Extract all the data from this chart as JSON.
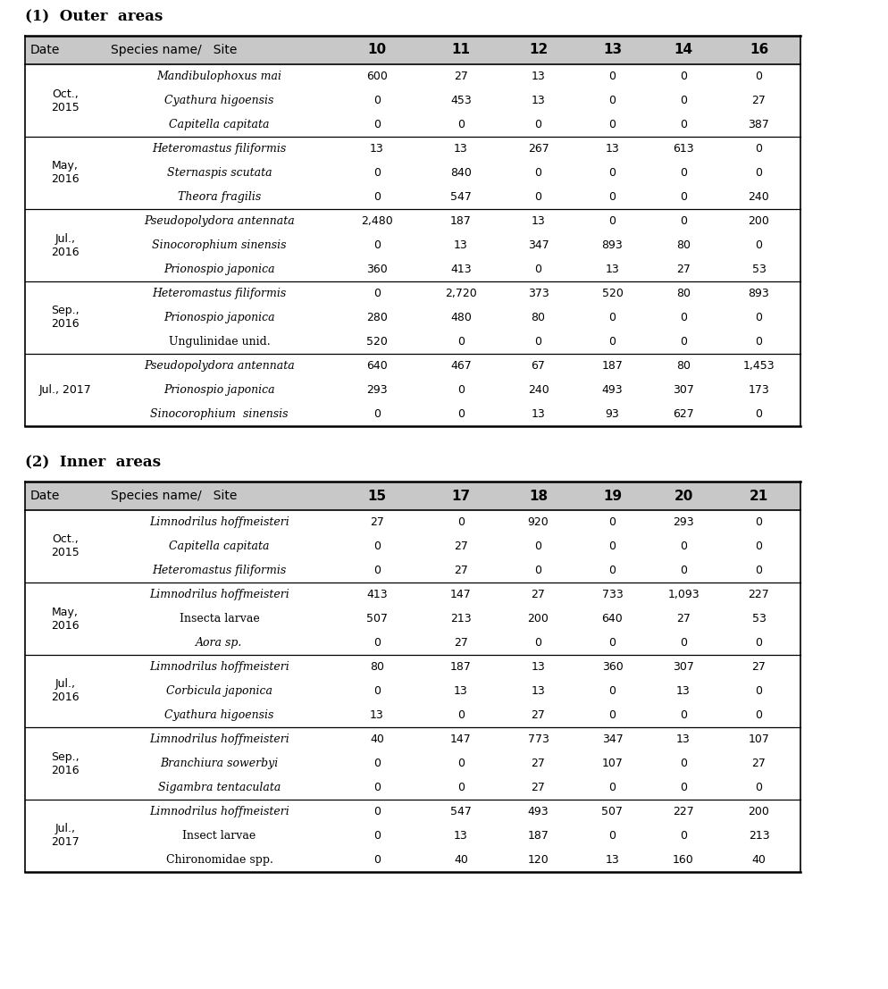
{
  "section1_title": "(1)  Outer  areas",
  "section2_title": "(2)  Inner  areas",
  "table1_header_cols": [
    "Date",
    "Species name/   Site",
    "10",
    "11",
    "12",
    "13",
    "14",
    "16"
  ],
  "table2_header_cols": [
    "Date",
    "Species name/   Site",
    "15",
    "17",
    "18",
    "19",
    "20",
    "21"
  ],
  "table1_rows": [
    {
      "date": "Oct.,\n2015",
      "species": [
        "Mandibulophoxus mai",
        "Cyathura higoensis",
        "Capitella capitata"
      ],
      "italic": [
        true,
        true,
        true
      ],
      "values": [
        [
          "600",
          "27",
          "13",
          "0",
          "0",
          "0"
        ],
        [
          "0",
          "453",
          "13",
          "0",
          "0",
          "27"
        ],
        [
          "0",
          "0",
          "0",
          "0",
          "0",
          "387"
        ]
      ]
    },
    {
      "date": "May,\n2016",
      "species": [
        "Heteromastus filiformis",
        "Sternaspis scutata",
        "Theora fragilis"
      ],
      "italic": [
        true,
        true,
        true
      ],
      "values": [
        [
          "13",
          "13",
          "267",
          "13",
          "613",
          "0"
        ],
        [
          "0",
          "840",
          "0",
          "0",
          "0",
          "0"
        ],
        [
          "0",
          "547",
          "0",
          "0",
          "0",
          "240"
        ]
      ]
    },
    {
      "date": "Jul.,\n2016",
      "species": [
        "Pseudopolydora antennata",
        "Sinocorophium sinensis",
        "Prionospio japonica"
      ],
      "italic": [
        true,
        true,
        true
      ],
      "values": [
        [
          "2,480",
          "187",
          "13",
          "0",
          "0",
          "200"
        ],
        [
          "0",
          "13",
          "347",
          "893",
          "80",
          "0"
        ],
        [
          "360",
          "413",
          "0",
          "13",
          "27",
          "53"
        ]
      ]
    },
    {
      "date": "Sep.,\n2016",
      "species": [
        "Heteromastus filiformis",
        "Prionospio japonica",
        "Ungulinidae unid."
      ],
      "italic": [
        true,
        true,
        false
      ],
      "values": [
        [
          "0",
          "2,720",
          "373",
          "520",
          "80",
          "893"
        ],
        [
          "280",
          "480",
          "80",
          "0",
          "0",
          "0"
        ],
        [
          "520",
          "0",
          "0",
          "0",
          "0",
          "0"
        ]
      ]
    },
    {
      "date": "Jul., 2017",
      "date_single": true,
      "species": [
        "Pseudopolydora antennata",
        "Prionospio japonica",
        "Sinocorophium  sinensis"
      ],
      "italic": [
        true,
        true,
        true
      ],
      "values": [
        [
          "640",
          "467",
          "67",
          "187",
          "80",
          "1,453"
        ],
        [
          "293",
          "0",
          "240",
          "493",
          "307",
          "173"
        ],
        [
          "0",
          "0",
          "13",
          "93",
          "627",
          "0"
        ]
      ]
    }
  ],
  "table2_rows": [
    {
      "date": "Oct.,\n2015",
      "species": [
        "Limnodrilus hoffmeisteri",
        "Capitella capitata",
        "Heteromastus filiformis"
      ],
      "italic": [
        true,
        true,
        true
      ],
      "values": [
        [
          "27",
          "0",
          "920",
          "0",
          "293",
          "0"
        ],
        [
          "0",
          "27",
          "0",
          "0",
          "0",
          "0"
        ],
        [
          "0",
          "27",
          "0",
          "0",
          "0",
          "0"
        ]
      ]
    },
    {
      "date": "May,\n2016",
      "species": [
        "Limnodrilus hoffmeisteri",
        "Insecta larvae",
        "Aora sp."
      ],
      "italic": [
        true,
        false,
        true
      ],
      "values": [
        [
          "413",
          "147",
          "27",
          "733",
          "1,093",
          "227"
        ],
        [
          "507",
          "213",
          "200",
          "640",
          "27",
          "53"
        ],
        [
          "0",
          "27",
          "0",
          "0",
          "0",
          "0"
        ]
      ]
    },
    {
      "date": "Jul.,\n2016",
      "species": [
        "Limnodrilus hoffmeisteri",
        "Corbicula japonica",
        "Cyathura higoensis"
      ],
      "italic": [
        true,
        true,
        true
      ],
      "values": [
        [
          "80",
          "187",
          "13",
          "360",
          "307",
          "27"
        ],
        [
          "0",
          "13",
          "13",
          "0",
          "13",
          "0"
        ],
        [
          "13",
          "0",
          "27",
          "0",
          "0",
          "0"
        ]
      ]
    },
    {
      "date": "Sep.,\n2016",
      "species": [
        "Limnodrilus hoffmeisteri",
        "Branchiura sowerbyi",
        "Sigambra tentaculata"
      ],
      "italic": [
        true,
        true,
        true
      ],
      "values": [
        [
          "40",
          "147",
          "773",
          "347",
          "13",
          "107"
        ],
        [
          "0",
          "0",
          "27",
          "107",
          "0",
          "27"
        ],
        [
          "0",
          "0",
          "27",
          "0",
          "0",
          "0"
        ]
      ]
    },
    {
      "date": "Jul.,\n2017",
      "species": [
        "Limnodrilus hoffmeisteri",
        "Insect larvae",
        "Chironomidae spp."
      ],
      "italic": [
        true,
        false,
        false
      ],
      "values": [
        [
          "0",
          "547",
          "493",
          "507",
          "227",
          "200"
        ],
        [
          "0",
          "13",
          "187",
          "0",
          "0",
          "213"
        ],
        [
          "0",
          "40",
          "120",
          "13",
          "160",
          "40"
        ]
      ]
    }
  ],
  "bg_color": "#ffffff",
  "header_bg": "#c8c8c8",
  "text_color": "#000000",
  "border_color": "#000000",
  "data_font_size": 9.0,
  "header_font_size": 10.0,
  "section_font_size": 12.0
}
